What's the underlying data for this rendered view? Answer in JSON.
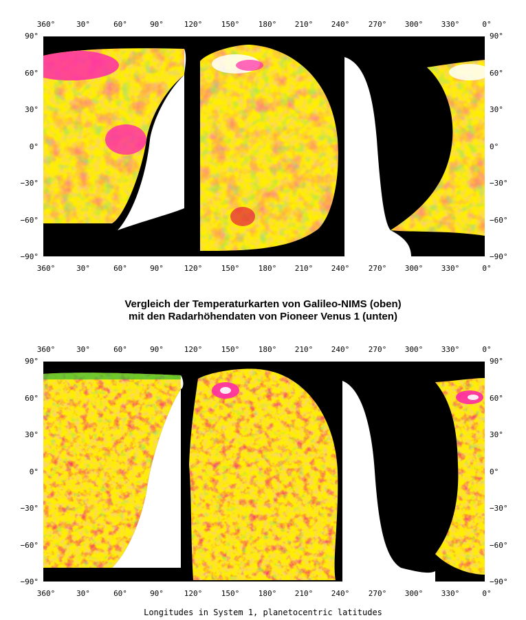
{
  "caption": {
    "line1": "Vergleich der Temperaturkarten von Galileo-NIMS (oben)",
    "line2": "mit den Radarhöhendaten von Pioneer Venus 1 (unten)"
  },
  "footer": "Longitudes in System 1, planetocentric latitudes",
  "longitude_ticks": [
    "360°",
    "30°",
    "60°",
    "90°",
    "120°",
    "150°",
    "180°",
    "210°",
    "240°",
    "270°",
    "300°",
    "330°",
    "0°"
  ],
  "latitude_ticks": [
    "90°",
    "60°",
    "30°",
    "0°",
    "−30°",
    "−60°",
    "−90°"
  ],
  "colors": {
    "background": "#000000",
    "cold": "#ffee00",
    "mid": "#f28a6a",
    "warm": "#e0003a",
    "hot": "#ff2aa8",
    "peak": "#ffffff",
    "low": "#33bb33"
  },
  "panels": [
    {
      "name": "Galileo-NIMS"
    },
    {
      "name": "Pioneer Venus 1"
    }
  ]
}
